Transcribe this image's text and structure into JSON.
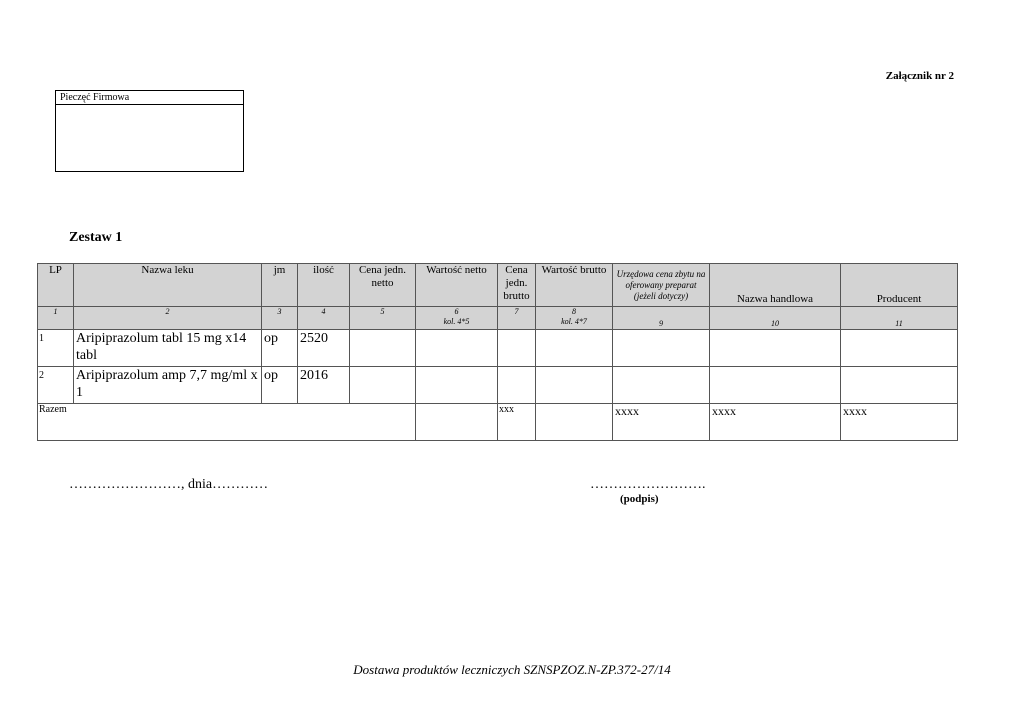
{
  "annex": "Załącznik nr 2",
  "stamp_label": "Pieczęć Firmowa",
  "title": "Zestaw 1",
  "headers": [
    "LP",
    "Nazwa leku",
    "jm",
    "ilość",
    "Cena jedn. netto",
    "Wartość netto",
    "Cena jedn. brutto",
    "Wartość brutto",
    "Urzędowa cena zbytu na oferowany preparat (jeżeli dotyczy)",
    "Nazwa handlowa",
    "Producent"
  ],
  "numbers": [
    "1",
    "2",
    "3",
    "4",
    "5",
    "6",
    "7",
    "8",
    "9",
    "10",
    "11"
  ],
  "number_notes": {
    "6": "kol. 4*5",
    "8": "kol. 4*7"
  },
  "rows": [
    {
      "lp": "1",
      "name": "Aripiprazolum tabl 15 mg x14 tabl",
      "jm": "op",
      "qty": "2520"
    },
    {
      "lp": "2",
      "name": "Aripiprazolum amp 7,7 mg/ml x 1",
      "jm": "op",
      "qty": "2016"
    }
  ],
  "summary": {
    "label": "Razem",
    "c7": "xxx",
    "c9": "xxxx",
    "c10": "xxxx",
    "c11": "xxxx"
  },
  "date_line": "……………………, dnia…………",
  "signature_line": "…………………….",
  "signature_label": "(podpis)",
  "footer": "Dostawa produktów leczniczych SZNSPZOZ.N-ZP.372-27/14"
}
